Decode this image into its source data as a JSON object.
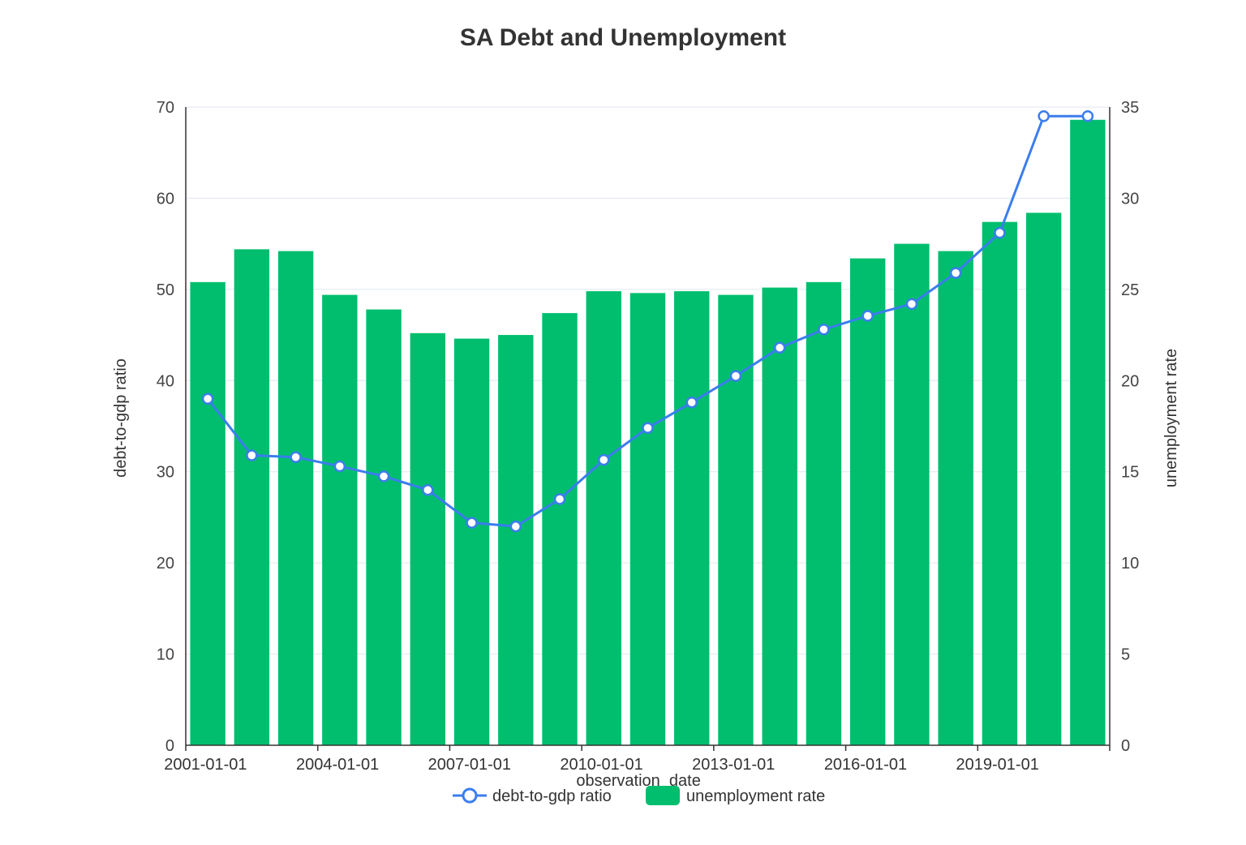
{
  "chart_data": {
    "type": "bar",
    "title": "SA Debt and Unemployment",
    "xlabel": "observation_date",
    "x_tick_labels": [
      "2001-01-01",
      "2004-01-01",
      "2007-01-01",
      "2010-01-01",
      "2013-01-01",
      "2016-01-01",
      "2019-01-01"
    ],
    "categories": [
      "2001-01-01",
      "2002-01-01",
      "2003-01-01",
      "2004-01-01",
      "2005-01-01",
      "2006-01-01",
      "2007-01-01",
      "2008-01-01",
      "2009-01-01",
      "2010-01-01",
      "2011-01-01",
      "2012-01-01",
      "2013-01-01",
      "2014-01-01",
      "2015-01-01",
      "2016-01-01",
      "2017-01-01",
      "2018-01-01",
      "2019-01-01",
      "2020-01-01",
      "2021-01-01"
    ],
    "y_left": {
      "label": "debt-to-gdp ratio",
      "range": [
        0,
        70
      ],
      "ticks": [
        0,
        10,
        20,
        30,
        40,
        50,
        60,
        70
      ]
    },
    "y_right": {
      "label": "unemployment rate",
      "range": [
        0,
        35
      ],
      "ticks": [
        0,
        5,
        10,
        15,
        20,
        25,
        30,
        35
      ]
    },
    "grid": true,
    "legend_position": "bottom-center",
    "series": [
      {
        "name": "debt-to-gdp ratio",
        "type": "line",
        "axis": "left",
        "color": "#3b7ded",
        "values": [
          38.0,
          31.8,
          31.6,
          30.6,
          29.5,
          28.0,
          24.4,
          24.0,
          27.0,
          31.3,
          34.8,
          37.6,
          40.5,
          43.6,
          45.6,
          47.1,
          48.4,
          51.8,
          56.2,
          69.0,
          69.0
        ]
      },
      {
        "name": "unemployment rate",
        "type": "bar",
        "axis": "right",
        "color": "#00be6e",
        "values": [
          25.4,
          27.2,
          27.1,
          24.7,
          23.9,
          22.6,
          22.3,
          22.5,
          23.7,
          24.9,
          24.8,
          24.9,
          24.7,
          25.1,
          25.4,
          26.7,
          27.5,
          27.1,
          28.7,
          29.2,
          34.3
        ]
      }
    ]
  }
}
